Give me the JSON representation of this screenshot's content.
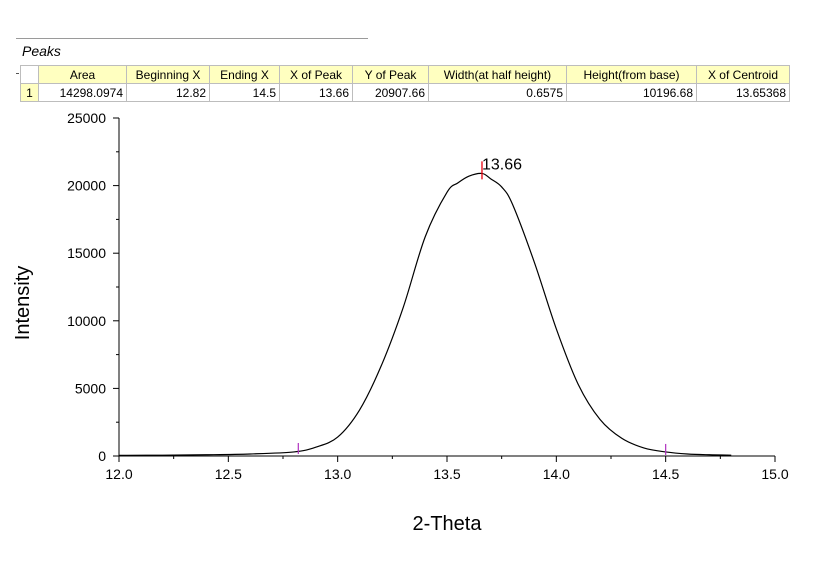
{
  "table": {
    "title": "Peaks",
    "columns": [
      "Area",
      "Beginning X",
      "Ending X",
      "X of Peak",
      "Y of Peak",
      "Width(at half height)",
      "Height(from base)",
      "X of Centroid"
    ],
    "row_label": "1",
    "row": [
      "14298.0974",
      "12.82",
      "14.5",
      "13.66",
      "20907.66",
      "0.6575",
      "10196.68",
      "13.65368"
    ]
  },
  "chart_data": {
    "type": "line",
    "xlabel": "2-Theta",
    "ylabel": "Intensity",
    "xlim": [
      12.0,
      15.0
    ],
    "ylim": [
      0,
      25000
    ],
    "x_ticks": [
      12.0,
      12.5,
      13.0,
      13.5,
      14.0,
      14.5,
      15.0
    ],
    "x_tick_labels": [
      "12.0",
      "12.5",
      "13.0",
      "13.5",
      "14.0",
      "14.5",
      "15.0"
    ],
    "y_ticks": [
      0,
      5000,
      10000,
      15000,
      20000,
      25000
    ],
    "y_tick_labels": [
      "0",
      "5000",
      "10000",
      "15000",
      "20000",
      "25000"
    ],
    "grid": false,
    "series": [
      {
        "x": [
          12.0,
          12.2,
          12.4,
          12.6,
          12.8,
          12.9,
          13.0,
          13.1,
          13.2,
          13.3,
          13.4,
          13.5,
          13.55,
          13.6,
          13.66,
          13.7,
          13.75,
          13.8,
          13.9,
          14.0,
          14.1,
          14.2,
          14.3,
          14.4,
          14.5,
          14.6,
          14.7,
          14.8
        ],
        "y": [
          50,
          60,
          90,
          150,
          300,
          650,
          1400,
          3400,
          6700,
          11000,
          16200,
          19500,
          20200,
          20700,
          20900,
          20500,
          19900,
          18600,
          14300,
          9400,
          5300,
          2700,
          1300,
          600,
          300,
          150,
          90,
          60
        ]
      }
    ],
    "peak": {
      "x": 13.66,
      "y": 20907.66,
      "label": "13.66"
    },
    "range_markers": [
      12.82,
      14.5
    ],
    "colors": {
      "curve": "#000000",
      "peak_marker": "#e8000e",
      "range_marker": "#b030c0"
    }
  }
}
